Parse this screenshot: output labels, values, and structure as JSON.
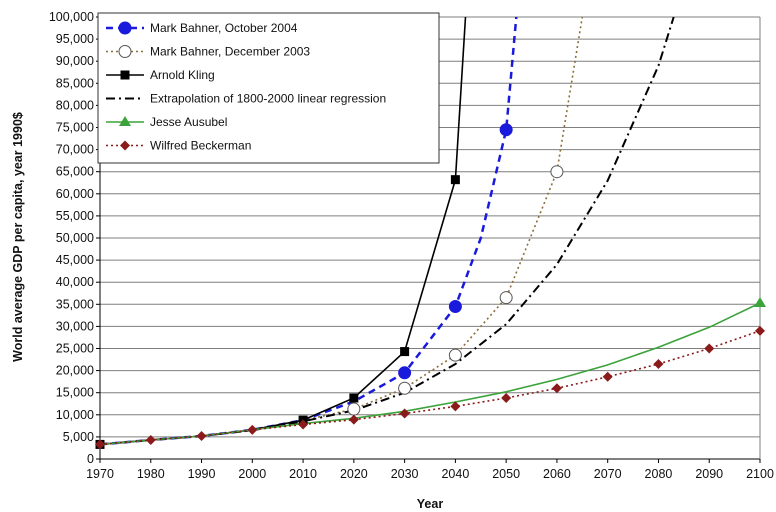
{
  "chart_data": {
    "type": "line",
    "title": "",
    "xlabel": "Year",
    "ylabel": "World average GDP per capita, year 1990$",
    "xlim": [
      1970,
      2100
    ],
    "ylim": [
      0,
      100000
    ],
    "x_ticks": [
      "1970",
      "1980",
      "1990",
      "2000",
      "2010",
      "2020",
      "2030",
      "2040",
      "2050",
      "2060",
      "2070",
      "2080",
      "2090",
      "2100"
    ],
    "y_ticks": [
      "0",
      "5,000",
      "10,000",
      "15,000",
      "20,000",
      "25,000",
      "30,000",
      "35,000",
      "40,000",
      "45,000",
      "50,000",
      "55,000",
      "60,000",
      "65,000",
      "70,000",
      "75,000",
      "80,000",
      "85,000",
      "90,000",
      "95,000",
      "100,000"
    ],
    "grid": "horizontal",
    "legend_position": "top-left",
    "series": [
      {
        "name": "Mark Bahner, October 2004",
        "color": "#1a1adc",
        "dash": "dashed",
        "marker": "circle-filled",
        "line_points": [
          [
            1970,
            3300
          ],
          [
            1980,
            4300
          ],
          [
            1990,
            5200
          ],
          [
            2000,
            6600
          ],
          [
            2010,
            8800
          ],
          [
            2020,
            13000
          ],
          [
            2030,
            19500
          ],
          [
            2040,
            34500
          ],
          [
            2045,
            50000
          ],
          [
            2050,
            74500
          ],
          [
            2052,
            100000
          ]
        ],
        "markers": [
          [
            2030,
            19500
          ],
          [
            2040,
            34500
          ],
          [
            2050,
            74500
          ]
        ]
      },
      {
        "name": "Mark Bahner, December 2003",
        "color": "#8b6d3a",
        "dash": "dotted",
        "marker": "circle-open",
        "line_points": [
          [
            1970,
            3300
          ],
          [
            1980,
            4300
          ],
          [
            1990,
            5200
          ],
          [
            2000,
            6600
          ],
          [
            2010,
            8700
          ],
          [
            2020,
            11300
          ],
          [
            2030,
            16000
          ],
          [
            2040,
            23500
          ],
          [
            2050,
            36500
          ],
          [
            2060,
            65000
          ],
          [
            2065,
            100000
          ]
        ],
        "markers": [
          [
            2020,
            11300
          ],
          [
            2030,
            16000
          ],
          [
            2040,
            23500
          ],
          [
            2050,
            36500
          ],
          [
            2060,
            65000
          ]
        ]
      },
      {
        "name": "Arnold Kling",
        "color": "#000000",
        "dash": "solid",
        "marker": "square",
        "line_points": [
          [
            1970,
            3300
          ],
          [
            1980,
            4300
          ],
          [
            1990,
            5200
          ],
          [
            2000,
            6600
          ],
          [
            2010,
            8800
          ],
          [
            2020,
            13800
          ],
          [
            2030,
            24300
          ],
          [
            2040,
            63200
          ],
          [
            2042,
            100000
          ]
        ],
        "markers": [
          [
            1970,
            3300
          ],
          [
            2010,
            8800
          ],
          [
            2020,
            13800
          ],
          [
            2030,
            24300
          ],
          [
            2040,
            63200
          ]
        ]
      },
      {
        "name": "Extrapolation of 1800-2000 linear regression",
        "color": "#000000",
        "dash": "dash-dot",
        "marker": "none",
        "line_points": [
          [
            1970,
            3300
          ],
          [
            1980,
            4300
          ],
          [
            1990,
            5200
          ],
          [
            2000,
            6500
          ],
          [
            2010,
            8500
          ],
          [
            2020,
            11000
          ],
          [
            2030,
            15000
          ],
          [
            2040,
            21500
          ],
          [
            2050,
            30500
          ],
          [
            2060,
            44000
          ],
          [
            2070,
            63000
          ],
          [
            2080,
            89000
          ],
          [
            2083,
            100000
          ]
        ],
        "markers": []
      },
      {
        "name": "Jesse Ausubel",
        "color": "#3aa33a",
        "dash": "solid",
        "marker": "triangle",
        "line_points": [
          [
            1970,
            3300
          ],
          [
            1980,
            4300
          ],
          [
            1990,
            5200
          ],
          [
            2000,
            6600
          ],
          [
            2010,
            8000
          ],
          [
            2020,
            9200
          ],
          [
            2030,
            10800
          ],
          [
            2040,
            12900
          ],
          [
            2050,
            15200
          ],
          [
            2060,
            18000
          ],
          [
            2070,
            21300
          ],
          [
            2080,
            25300
          ],
          [
            2090,
            29800
          ],
          [
            2100,
            35300
          ]
        ],
        "markers": [
          [
            2100,
            35300
          ]
        ]
      },
      {
        "name": "Wilfred Beckerman",
        "color": "#8b1a1a",
        "dash": "dotted",
        "marker": "diamond",
        "line_points": [
          [
            1970,
            3300
          ],
          [
            1980,
            4300
          ],
          [
            1990,
            5200
          ],
          [
            2000,
            6600
          ],
          [
            2010,
            7800
          ],
          [
            2020,
            8900
          ],
          [
            2030,
            10300
          ],
          [
            2040,
            11900
          ],
          [
            2050,
            13800
          ],
          [
            2060,
            16000
          ],
          [
            2070,
            18600
          ],
          [
            2080,
            21500
          ],
          [
            2090,
            25000
          ],
          [
            2100,
            29000
          ]
        ],
        "markers": [
          [
            1970,
            3300
          ],
          [
            1980,
            4300
          ],
          [
            1990,
            5200
          ],
          [
            2000,
            6600
          ],
          [
            2010,
            7800
          ],
          [
            2020,
            8900
          ],
          [
            2030,
            10300
          ],
          [
            2040,
            11900
          ],
          [
            2050,
            13800
          ],
          [
            2060,
            16000
          ],
          [
            2070,
            18600
          ],
          [
            2080,
            21500
          ],
          [
            2090,
            25000
          ],
          [
            2100,
            29000
          ]
        ]
      }
    ]
  }
}
